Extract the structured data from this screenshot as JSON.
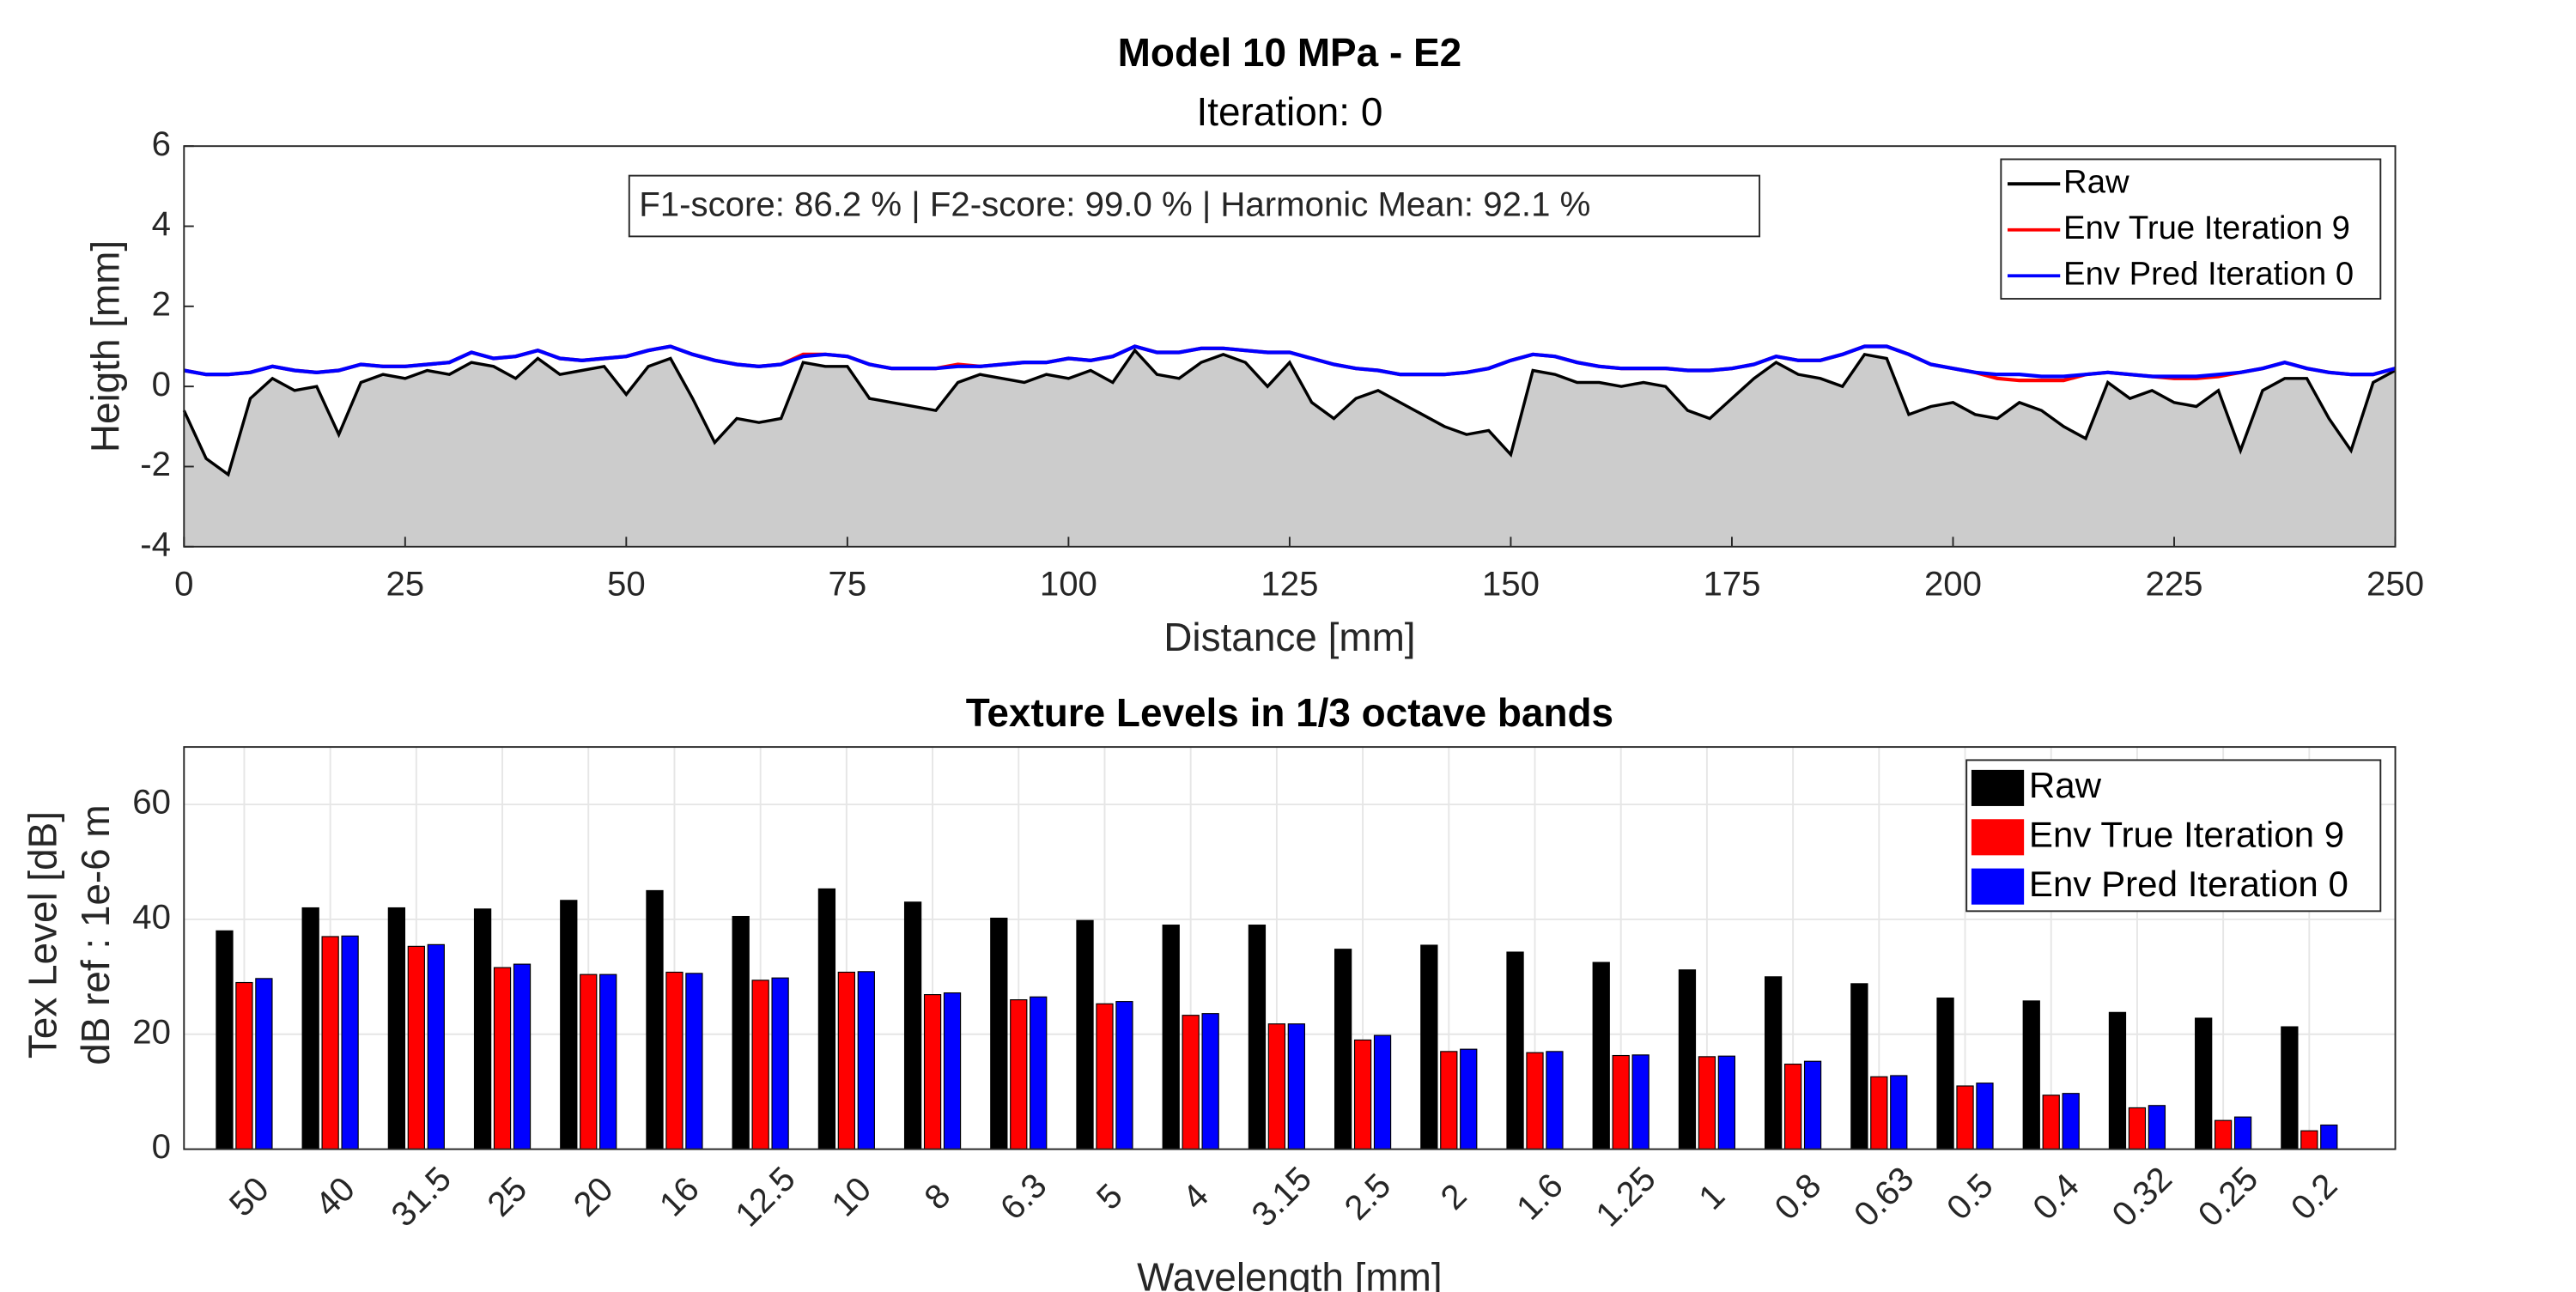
{
  "chart_data": [
    {
      "type": "line",
      "title": "Model 10 MPa - E2",
      "subtitle": "Iteration: 0",
      "xlabel": "Distance [mm]",
      "ylabel": "Heigth [mm]",
      "annotation": "F1-score: 86.2 % | F2-score: 99.0 % | Harmonic Mean: 92.1 %",
      "xlim": [
        0,
        250
      ],
      "xticks": [
        0,
        25,
        50,
        75,
        100,
        125,
        150,
        175,
        200,
        225,
        250
      ],
      "ylim": [
        -4,
        6
      ],
      "yticks": [
        -4,
        -2,
        0,
        2,
        4,
        6
      ],
      "grid": false,
      "legend": "upper right",
      "x": [
        0,
        2.5,
        5,
        7.5,
        10,
        12.5,
        15,
        17.5,
        20,
        22.5,
        25,
        27.5,
        30,
        32.5,
        35,
        37.5,
        40,
        42.5,
        45,
        47.5,
        50,
        52.5,
        55,
        57.5,
        60,
        62.5,
        65,
        67.5,
        70,
        72.5,
        75,
        77.5,
        80,
        82.5,
        85,
        87.5,
        90,
        92.5,
        95,
        97.5,
        100,
        102.5,
        105,
        107.5,
        110,
        112.5,
        115,
        117.5,
        120,
        122.5,
        125,
        127.5,
        130,
        132.5,
        135,
        137.5,
        140,
        142.5,
        145,
        147.5,
        150,
        152.5,
        155,
        157.5,
        160,
        162.5,
        165,
        167.5,
        170,
        172.5,
        175,
        177.5,
        180,
        182.5,
        185,
        187.5,
        190,
        192.5,
        195,
        197.5,
        200,
        202.5,
        205,
        207.5,
        210,
        212.5,
        215,
        217.5,
        220,
        222.5,
        225,
        227.5,
        230,
        232.5,
        235,
        237.5,
        240,
        242.5,
        245,
        247.5,
        250
      ],
      "series": [
        {
          "name": "Raw",
          "color": "#000000",
          "fill": "#cccccc",
          "values": [
            -0.6,
            -1.8,
            -2.2,
            -0.3,
            0.2,
            -0.1,
            0.0,
            -1.2,
            0.1,
            0.3,
            0.2,
            0.4,
            0.3,
            0.6,
            0.5,
            0.2,
            0.7,
            0.3,
            0.4,
            0.5,
            -0.2,
            0.5,
            0.7,
            -0.3,
            -1.4,
            -0.8,
            -0.9,
            -0.8,
            0.6,
            0.5,
            0.5,
            -0.3,
            -0.4,
            -0.5,
            -0.6,
            0.1,
            0.3,
            0.2,
            0.1,
            0.3,
            0.2,
            0.4,
            0.1,
            0.9,
            0.3,
            0.2,
            0.6,
            0.8,
            0.6,
            0.0,
            0.6,
            -0.4,
            -0.8,
            -0.3,
            -0.1,
            -0.4,
            -0.7,
            -1.0,
            -1.2,
            -1.1,
            -1.7,
            0.4,
            0.3,
            0.1,
            0.1,
            0.0,
            0.1,
            0.0,
            -0.6,
            -0.8,
            -0.3,
            0.2,
            0.6,
            0.3,
            0.2,
            0.0,
            0.8,
            0.7,
            -0.7,
            -0.5,
            -0.4,
            -0.7,
            -0.8,
            -0.4,
            -0.6,
            -1.0,
            -1.3,
            0.1,
            -0.3,
            -0.1,
            -0.4,
            -0.5,
            -0.1,
            -1.6,
            -0.1,
            0.2,
            0.2,
            -0.8,
            -1.6,
            0.1,
            0.4
          ]
        },
        {
          "name": "Env True Iteration 9",
          "color": "#ff0000",
          "values": [
            0.4,
            0.3,
            0.3,
            0.35,
            0.5,
            0.4,
            0.35,
            0.4,
            0.55,
            0.5,
            0.5,
            0.55,
            0.6,
            0.85,
            0.7,
            0.75,
            0.9,
            0.7,
            0.65,
            0.7,
            0.75,
            0.9,
            1.0,
            0.8,
            0.65,
            0.55,
            0.5,
            0.55,
            0.8,
            0.8,
            0.75,
            0.55,
            0.45,
            0.45,
            0.45,
            0.55,
            0.5,
            0.55,
            0.6,
            0.6,
            0.7,
            0.65,
            0.75,
            1.0,
            0.85,
            0.85,
            0.95,
            0.95,
            0.9,
            0.85,
            0.85,
            0.7,
            0.55,
            0.45,
            0.4,
            0.3,
            0.3,
            0.3,
            0.35,
            0.45,
            0.65,
            0.8,
            0.75,
            0.6,
            0.5,
            0.45,
            0.45,
            0.45,
            0.4,
            0.4,
            0.45,
            0.55,
            0.75,
            0.65,
            0.65,
            0.8,
            1.0,
            1.0,
            0.8,
            0.55,
            0.45,
            0.35,
            0.2,
            0.15,
            0.15,
            0.15,
            0.3,
            0.35,
            0.3,
            0.25,
            0.2,
            0.2,
            0.25,
            0.35,
            0.45,
            0.6,
            0.45,
            0.35,
            0.3,
            0.3,
            0.45
          ]
        },
        {
          "name": "Env Pred Iteration 0",
          "color": "#0000ff",
          "values": [
            0.4,
            0.3,
            0.3,
            0.35,
            0.5,
            0.4,
            0.35,
            0.4,
            0.55,
            0.5,
            0.5,
            0.55,
            0.6,
            0.85,
            0.7,
            0.75,
            0.9,
            0.7,
            0.65,
            0.7,
            0.75,
            0.9,
            1.0,
            0.8,
            0.65,
            0.55,
            0.5,
            0.55,
            0.75,
            0.8,
            0.75,
            0.55,
            0.45,
            0.45,
            0.45,
            0.5,
            0.5,
            0.55,
            0.6,
            0.6,
            0.7,
            0.65,
            0.75,
            1.0,
            0.85,
            0.85,
            0.95,
            0.95,
            0.9,
            0.85,
            0.85,
            0.7,
            0.55,
            0.45,
            0.4,
            0.3,
            0.3,
            0.3,
            0.35,
            0.45,
            0.65,
            0.8,
            0.75,
            0.6,
            0.5,
            0.45,
            0.45,
            0.45,
            0.4,
            0.4,
            0.45,
            0.55,
            0.75,
            0.65,
            0.65,
            0.8,
            1.0,
            1.0,
            0.8,
            0.55,
            0.45,
            0.35,
            0.3,
            0.3,
            0.25,
            0.25,
            0.3,
            0.35,
            0.3,
            0.25,
            0.25,
            0.25,
            0.3,
            0.35,
            0.45,
            0.6,
            0.45,
            0.35,
            0.3,
            0.3,
            0.45
          ]
        }
      ]
    },
    {
      "type": "bar",
      "title": "Texture Levels in 1/3 octave bands",
      "xlabel": "Wavelength [mm]",
      "ylabel": [
        "Tex Level [dB]",
        "dB ref : 1e-6 m"
      ],
      "ylim": [
        0,
        70
      ],
      "yticks": [
        0,
        20,
        40,
        60
      ],
      "grid": true,
      "legend": "upper right",
      "categories": [
        "50",
        "40",
        "31.5",
        "25",
        "20",
        "16",
        "12.5",
        "10",
        "8",
        "6.3",
        "5",
        "4",
        "3.15",
        "2.5",
        "2",
        "1.6",
        "1.25",
        "1",
        "0.8",
        "0.63",
        "0.5",
        "0.4",
        "0.32",
        "0.25",
        "0.2"
      ],
      "series": [
        {
          "name": "Raw",
          "color": "#000000",
          "values": [
            38,
            42,
            42,
            41.8,
            43.3,
            45,
            40.5,
            45.3,
            43,
            40.2,
            39.8,
            39,
            39,
            34.8,
            35.5,
            34.3,
            32.5,
            31.2,
            30,
            28.8,
            26.3,
            25.8,
            23.8,
            22.8,
            21.3
          ]
        },
        {
          "name": "Env True Iteration 9",
          "color": "#ff0000",
          "values": [
            29,
            37,
            35.3,
            31.6,
            30.4,
            30.8,
            29.4,
            30.8,
            26.9,
            26,
            25.3,
            23.3,
            21.8,
            19,
            17,
            16.8,
            16.3,
            16.1,
            14.8,
            12.6,
            11,
            9.4,
            7.2,
            5,
            3.2
          ]
        },
        {
          "name": "Env Pred Iteration 0",
          "color": "#0000ff",
          "values": [
            29.7,
            37.1,
            35.6,
            32.2,
            30.4,
            30.6,
            29.8,
            30.9,
            27.2,
            26.5,
            25.7,
            23.6,
            21.8,
            19.8,
            17.4,
            17,
            16.4,
            16.2,
            15.3,
            12.8,
            11.5,
            9.7,
            7.6,
            5.6,
            4.2
          ]
        }
      ]
    }
  ]
}
